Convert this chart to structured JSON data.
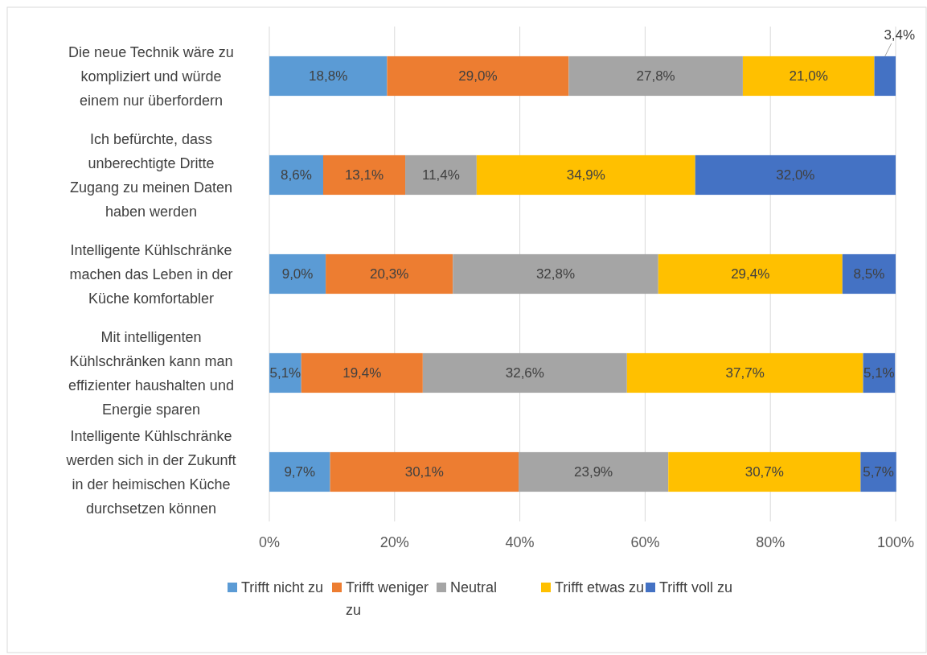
{
  "chart_data": {
    "type": "bar",
    "orientation": "horizontal",
    "stacked": true,
    "categories": [
      "Die neue Technik wäre zu kompliziert und würde einem nur überfordern",
      "Ich befürchte, dass unberechtigte Dritte Zugang zu meinen Daten haben werden",
      "Intelligente Kühlschränke machen das Leben in der Küche komfortabler",
      "Mit intelligenten Kühlschränken kann man effizienter haushalten und Energie sparen",
      "Intelligente Kühlschränke werden sich in der Zukunft in der heimischen Küche durchsetzen können"
    ],
    "series": [
      {
        "name": "Trifft nicht zu",
        "color": "#5b9bd5",
        "values": [
          18.8,
          8.6,
          9.0,
          5.1,
          9.7
        ],
        "value_labels": [
          "18,8%",
          "8,6%",
          "9,0%",
          "5,1%",
          "9,7%"
        ]
      },
      {
        "name": "Trifft weniger zu",
        "color": "#ed7d31",
        "values": [
          29.0,
          13.1,
          20.3,
          19.4,
          30.1
        ],
        "value_labels": [
          "29,0%",
          "13,1%",
          "20,3%",
          "19,4%",
          "30,1%"
        ]
      },
      {
        "name": "Neutral",
        "color": "#a5a5a5",
        "values": [
          27.8,
          11.4,
          32.8,
          32.6,
          23.9
        ],
        "value_labels": [
          "27,8%",
          "11,4%",
          "32,8%",
          "32,6%",
          "23,9%"
        ]
      },
      {
        "name": "Trifft etwas zu",
        "color": "#ffc000",
        "values": [
          21.0,
          34.9,
          29.4,
          37.7,
          30.7
        ],
        "value_labels": [
          "21,0%",
          "34,9%",
          "29,4%",
          "37,7%",
          "30,7%"
        ]
      },
      {
        "name": "Trifft voll zu",
        "color": "#4472c4",
        "values": [
          3.4,
          32.0,
          8.5,
          5.1,
          5.7
        ],
        "value_labels": [
          "3,4%",
          "32,0%",
          "8,5%",
          "5,1%",
          "5,7%"
        ]
      }
    ],
    "xlim": [
      0,
      100
    ],
    "xticks": [
      {
        "value": 0,
        "label": "0%"
      },
      {
        "value": 20,
        "label": "20%"
      },
      {
        "value": 40,
        "label": "40%"
      },
      {
        "value": 60,
        "label": "60%"
      },
      {
        "value": 80,
        "label": "80%"
      },
      {
        "value": 100,
        "label": "100%"
      }
    ],
    "grid": "x",
    "legend": "bottom"
  }
}
